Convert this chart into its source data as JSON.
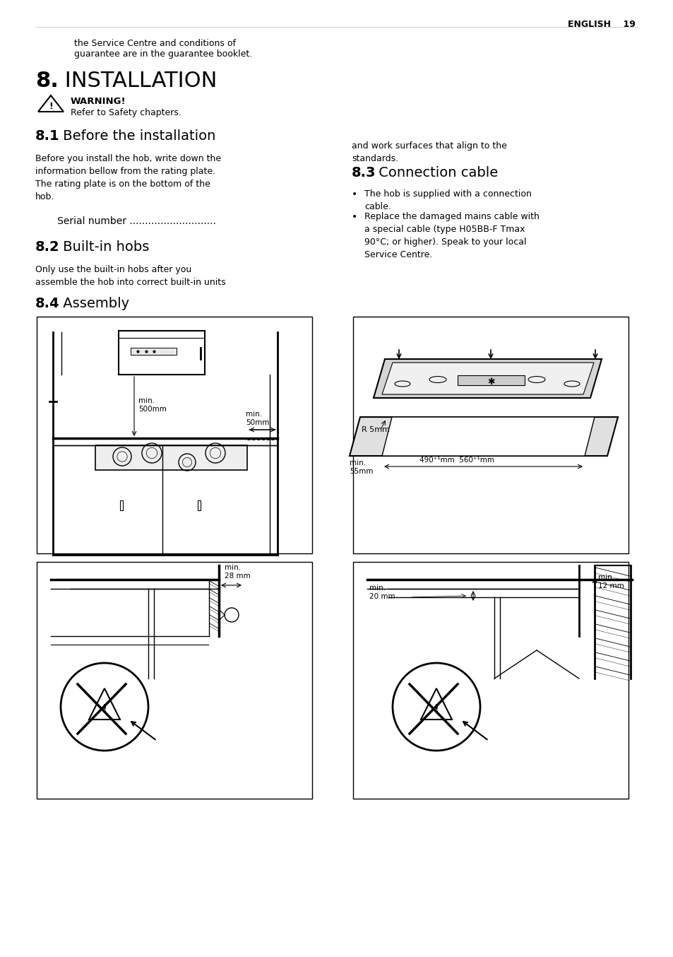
{
  "page_header_right": "ENGLISH    19",
  "intro_text_line1": "the Service Centre and conditions of",
  "intro_text_line2": "guarantee are in the guarantee booklet.",
  "section_title_num": "8.",
  "section_title_text": " INSTALLATION",
  "warning_title": "WARNING!",
  "warning_text": "Refer to Safety chapters.",
  "s81_num": "8.1",
  "s81_title": " Before the installation",
  "s81_body": "Before you install the hob, write down the\ninformation bellow from the rating plate.\nThe rating plate is on the bottom of the\nhob.",
  "s81_serial": "   Serial number ............................",
  "s82_num": "8.2",
  "s82_title": " Built-in hobs",
  "s82_body": "Only use the built-in hobs after you\nassemble the hob into correct built-in units",
  "s84_num": "8.4",
  "s84_title": " Assembly",
  "s83_num": "8.3",
  "s83_title": " Connection cable",
  "right_top_text": "and work surfaces that align to the\nstandards.",
  "s83_bullet1": "The hob is supplied with a connection\ncable.",
  "s83_bullet2": "Replace the damaged mains cable with\na special cable (type H05BB-F Tmax\n90°C; or higher). Speak to your local\nService Centre.",
  "bg_color": "#ffffff",
  "text_color": "#000000",
  "border_color": "#000000"
}
